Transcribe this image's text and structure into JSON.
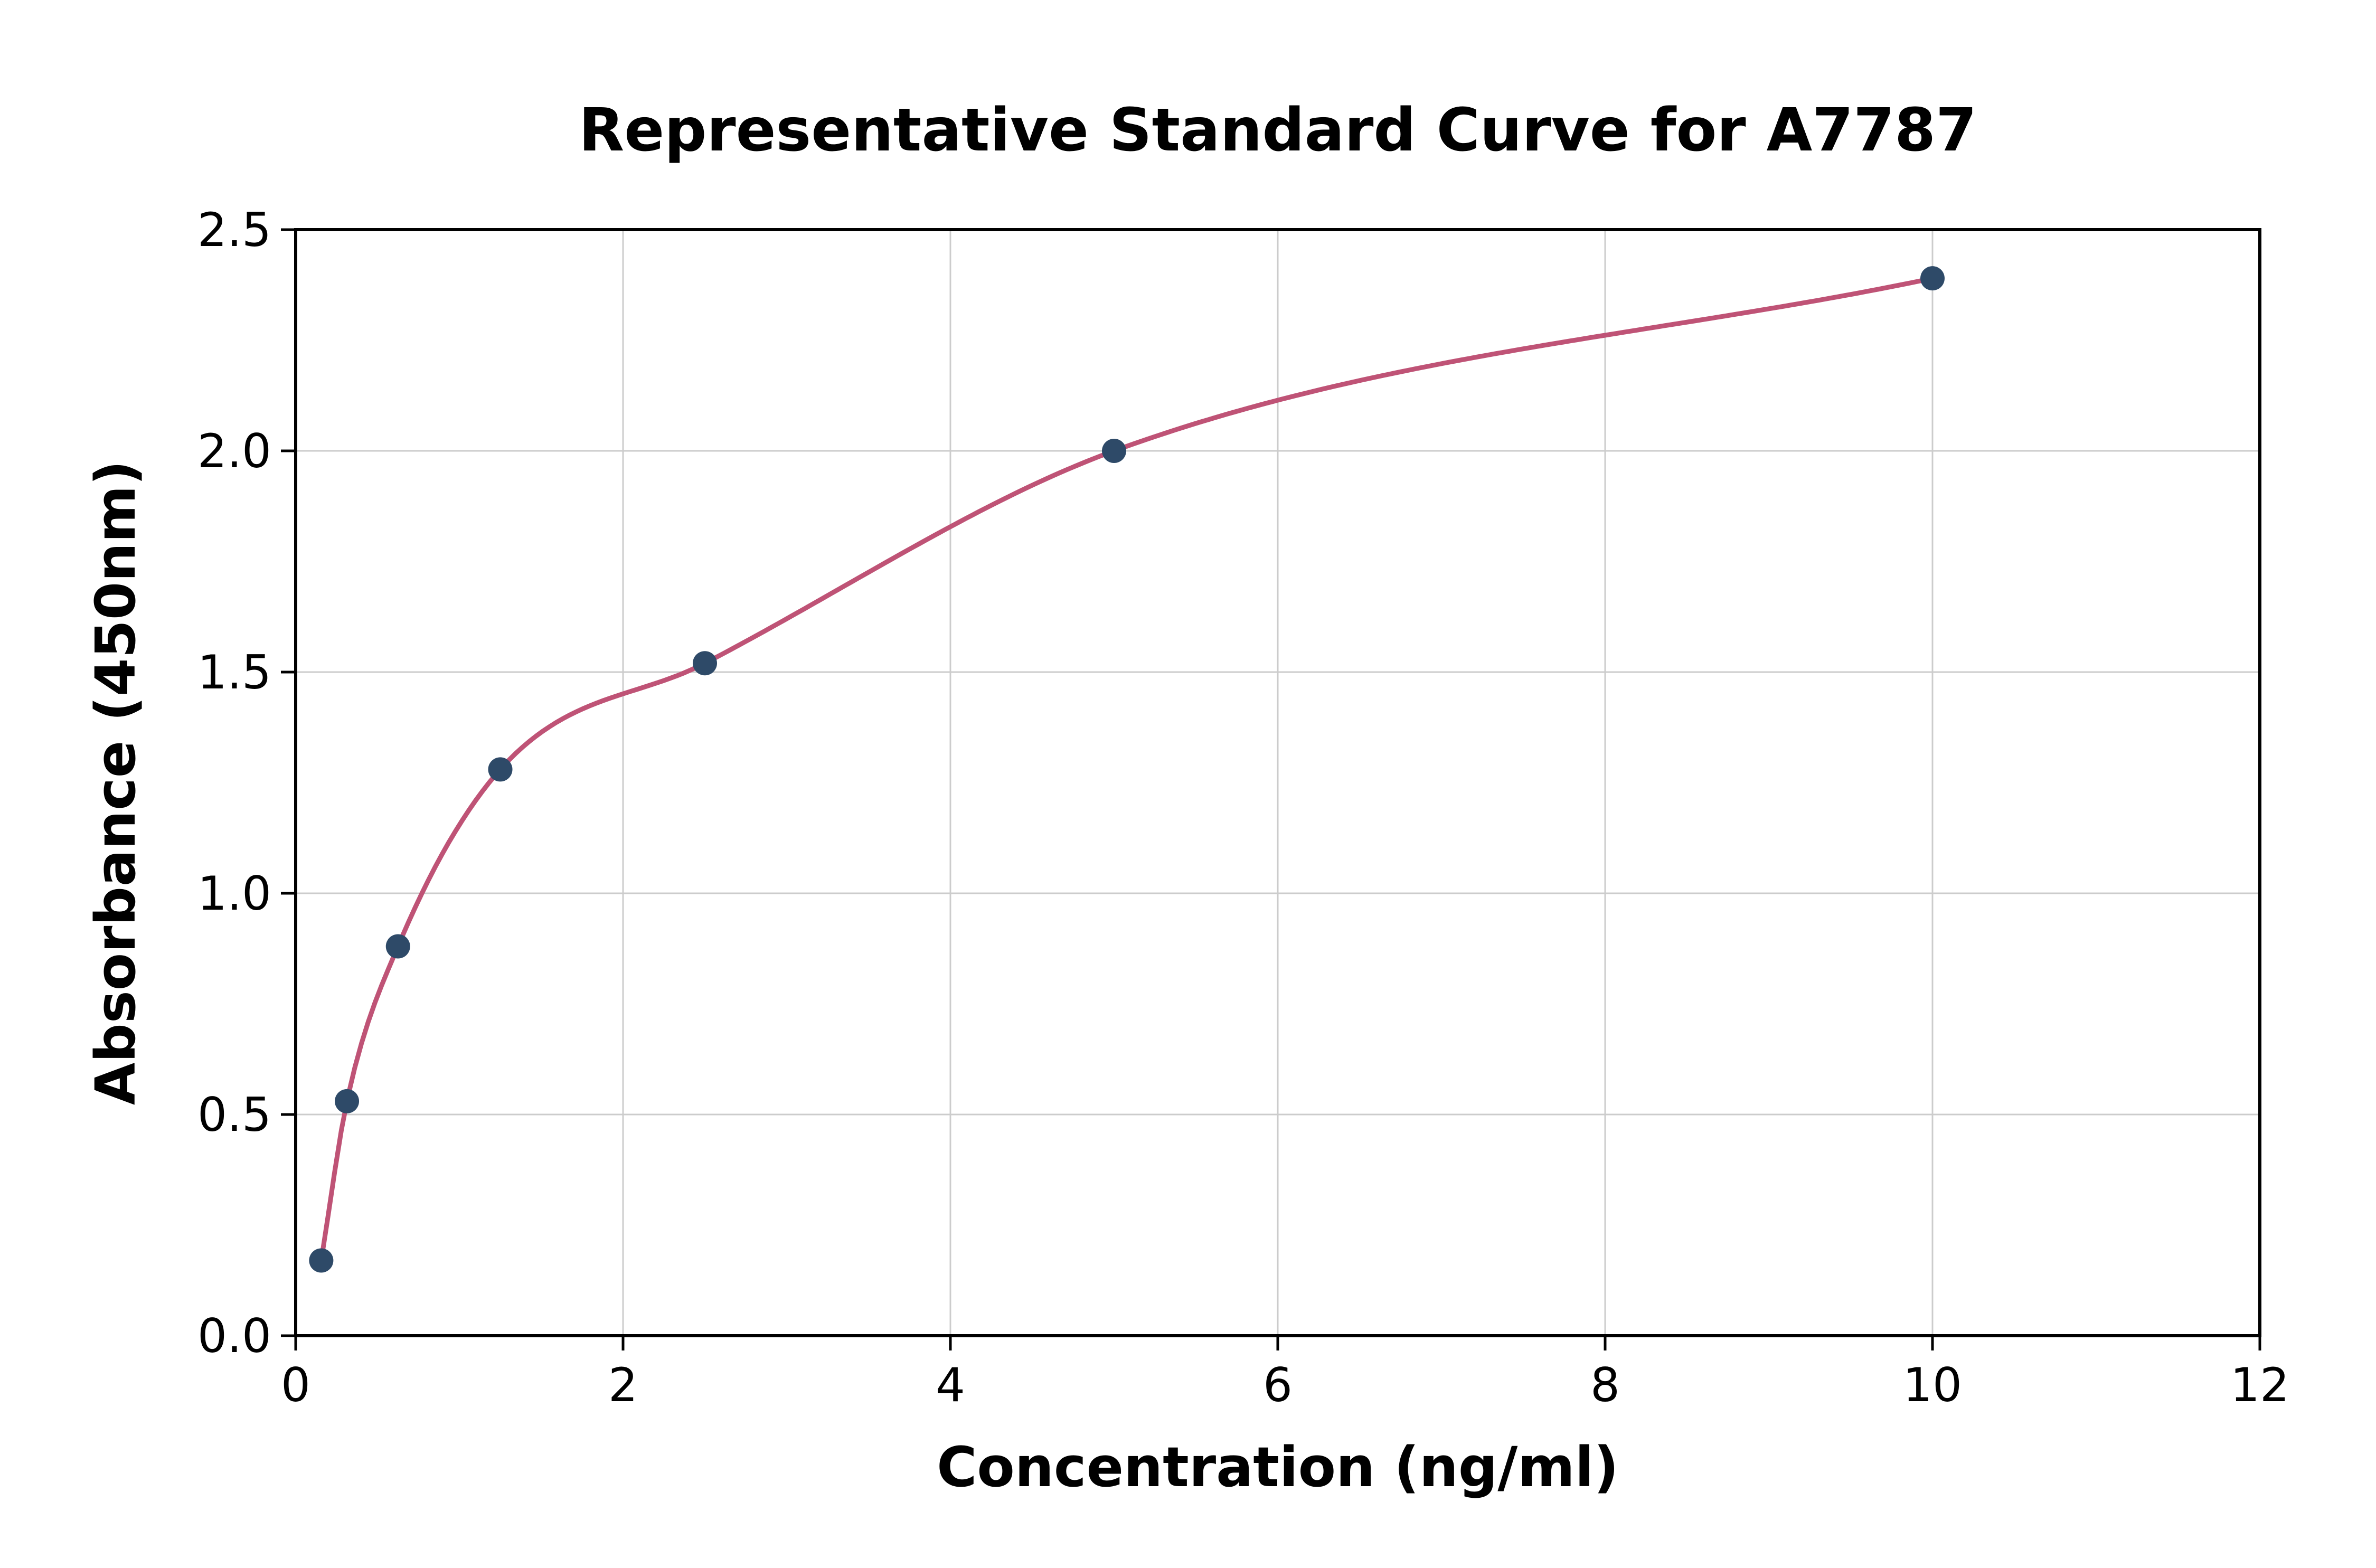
{
  "chart_data": {
    "type": "scatter",
    "title": "Representative Standard Curve for A7787",
    "xlabel": "Concentration (ng/ml)",
    "ylabel": "Absorbance (450nm)",
    "xlim": [
      0,
      12
    ],
    "ylim": [
      0,
      2.5
    ],
    "x_ticks": [
      0,
      2,
      4,
      6,
      8,
      10,
      12
    ],
    "x_tick_labels": [
      "0",
      "2",
      "4",
      "6",
      "8",
      "10",
      "12"
    ],
    "y_ticks": [
      0.0,
      0.5,
      1.0,
      1.5,
      2.0,
      2.5
    ],
    "y_tick_labels": [
      "0.0",
      "0.5",
      "1.0",
      "1.5",
      "2.0",
      "2.5"
    ],
    "grid": true,
    "legend": "none",
    "points": [
      {
        "x": 0.156,
        "y": 0.17
      },
      {
        "x": 0.313,
        "y": 0.53
      },
      {
        "x": 0.625,
        "y": 0.88
      },
      {
        "x": 1.25,
        "y": 1.28
      },
      {
        "x": 2.5,
        "y": 1.52
      },
      {
        "x": 5.0,
        "y": 2.0
      },
      {
        "x": 10.0,
        "y": 2.39
      }
    ],
    "fit_curve": {
      "type": "smooth-through-points",
      "x_start": 0.156,
      "x_end": 10.0
    },
    "colors": {
      "curve": "#bf5376",
      "points": "#2e4a68",
      "grid": "#cccccc",
      "axis": "#000000",
      "background": "#ffffff",
      "text": "#000000"
    }
  }
}
